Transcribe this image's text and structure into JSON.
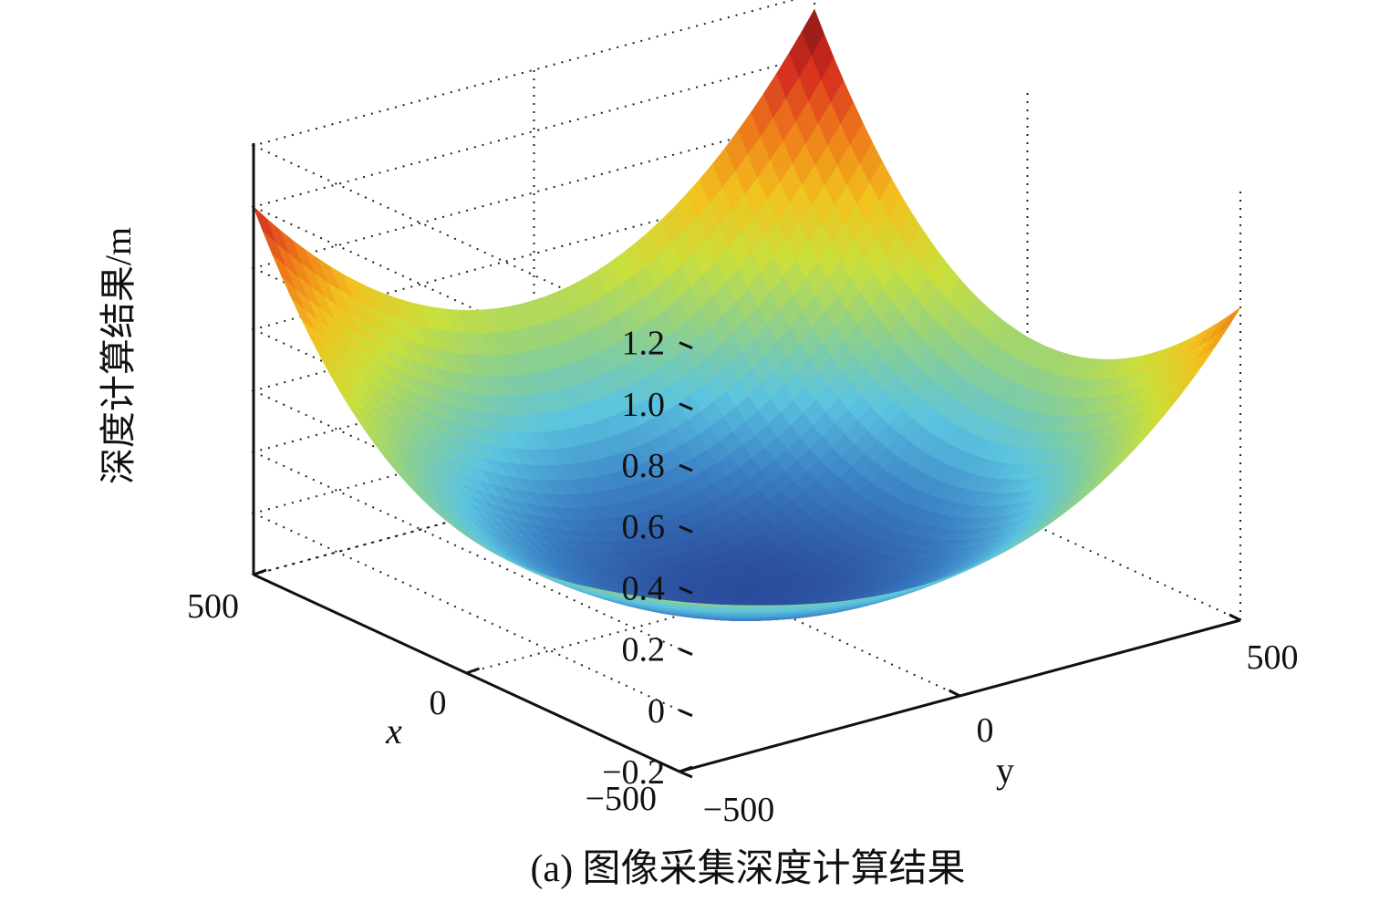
{
  "chart_data": {
    "type": "surface3d",
    "zlabel": "深度计算结果/m",
    "xlabel": "x",
    "ylabel": "y",
    "caption": "(a) 图像采集深度计算结果",
    "xlim": [
      -500,
      500
    ],
    "ylim": [
      -500,
      500
    ],
    "zlim": [
      -0.2,
      1.2
    ],
    "x_ticks": [
      "500",
      "0",
      "−500"
    ],
    "y_ticks": [
      "−500",
      "0",
      "500"
    ],
    "z_ticks": [
      "1.2",
      "1.0",
      "0.8",
      "0.6",
      "0.4",
      "0.2",
      "0",
      "−0.2"
    ],
    "z_tick_values": [
      1.2,
      1.0,
      0.8,
      0.6,
      0.4,
      0.2,
      0,
      -0.2
    ],
    "surface": {
      "description": "paraboloid bowl",
      "z_min": -0.18,
      "z_corner_front": 0.35,
      "z_corner_back": 1.15,
      "z_corner_left": 1.0,
      "z_corner_right": 0.82
    },
    "colormap": [
      "#2b4c9c",
      "#3a7fc4",
      "#5bc4e0",
      "#8fd08a",
      "#c9df3c",
      "#f2c21e",
      "#ee7a1a",
      "#d42a20",
      "#7a1814"
    ],
    "grid": true
  }
}
